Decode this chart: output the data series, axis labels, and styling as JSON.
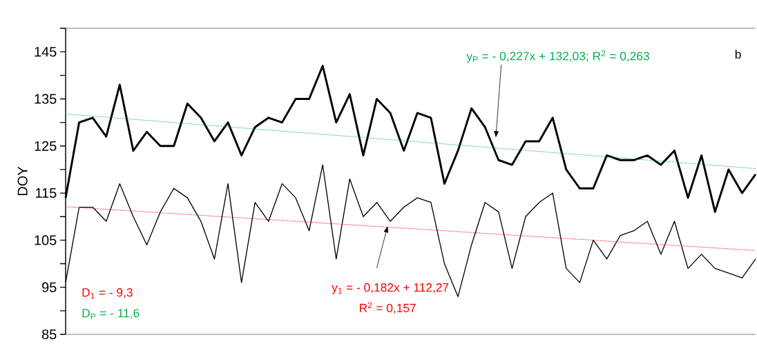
{
  "chart_data": {
    "type": "line",
    "ylabel": "DOY",
    "categories": [
      null,
      null,
      null,
      null,
      null,
      null,
      null,
      null,
      null,
      null,
      null,
      null,
      null,
      null,
      null,
      null,
      null,
      null,
      null,
      null,
      null,
      null,
      null,
      null,
      null,
      null,
      null,
      null,
      null,
      null,
      null,
      null,
      null,
      null,
      null,
      null,
      null,
      null,
      null,
      null,
      null,
      null,
      null,
      null,
      null,
      null,
      null,
      null,
      null,
      null,
      null,
      null
    ],
    "series": [
      {
        "color": "#000000",
        "values": [
          114,
          130,
          131,
          127,
          138,
          124,
          128,
          125,
          125,
          134,
          131,
          126,
          130,
          123,
          129,
          131,
          130,
          135,
          135,
          142,
          130,
          136,
          123,
          135,
          132,
          124,
          132,
          131,
          117,
          124,
          133,
          129,
          122,
          121,
          126,
          126,
          131,
          120,
          116,
          116,
          123,
          122,
          122,
          123,
          121,
          124,
          114,
          123,
          111,
          120,
          115,
          119
        ]
      },
      {
        "color": "#000000",
        "values": [
          96,
          112,
          112,
          109,
          117,
          110,
          104,
          111,
          116,
          114,
          109,
          101,
          117,
          96,
          113,
          109,
          117,
          114,
          107,
          121,
          101,
          118,
          110,
          113,
          109,
          112,
          114,
          113,
          100,
          93,
          104,
          113,
          111,
          99,
          110,
          113,
          115,
          99,
          96,
          105,
          101,
          106,
          107,
          109,
          102,
          109,
          99,
          102,
          99,
          98,
          97,
          101
        ]
      },
      {
        "color": "#00b050",
        "line_style": "dotted",
        "values": [
          131.8,
          null,
          null,
          null,
          null,
          null,
          null,
          null,
          null,
          null,
          null,
          null,
          null,
          null,
          null,
          null,
          null,
          null,
          null,
          null,
          null,
          null,
          null,
          null,
          null,
          null,
          null,
          null,
          null,
          null,
          null,
          null,
          null,
          null,
          null,
          null,
          null,
          null,
          null,
          null,
          null,
          null,
          null,
          null,
          null,
          null,
          null,
          null,
          null,
          null,
          null,
          120.2
        ]
      },
      {
        "color": "#ff0000",
        "line_style": "dotted",
        "values": [
          112.1,
          null,
          null,
          null,
          null,
          null,
          null,
          null,
          null,
          null,
          null,
          null,
          null,
          null,
          null,
          null,
          null,
          null,
          null,
          null,
          null,
          null,
          null,
          null,
          null,
          null,
          null,
          null,
          null,
          null,
          null,
          null,
          null,
          null,
          null,
          null,
          null,
          null,
          null,
          null,
          null,
          null,
          null,
          null,
          null,
          null,
          null,
          null,
          null,
          null,
          null,
          102.8
        ]
      }
    ],
    "ylim": [
      85,
      150
    ],
    "yticks": [
      85,
      {
        "value": 90,
        "label": null
      },
      95,
      {
        "value": 100,
        "label": null
      },
      105,
      {
        "value": 110,
        "label": null
      },
      115,
      {
        "value": 120,
        "label": null
      },
      125,
      {
        "value": 130,
        "label": null
      },
      135,
      {
        "value": 140,
        "label": null
      },
      145,
      {
        "value": 150,
        "label": null
      }
    ],
    "annotations": [
      "b",
      "y$_{P}$ = - 0,227x + 132,03;  R$^{2}$ = 0,263",
      "y$_{1}$ = - 0,182x + 112,27",
      "R$^{2}$ = 0,157",
      "D$_{1}$ = -   9,3",
      "D$_{P}$ = - 11,6"
    ]
  }
}
